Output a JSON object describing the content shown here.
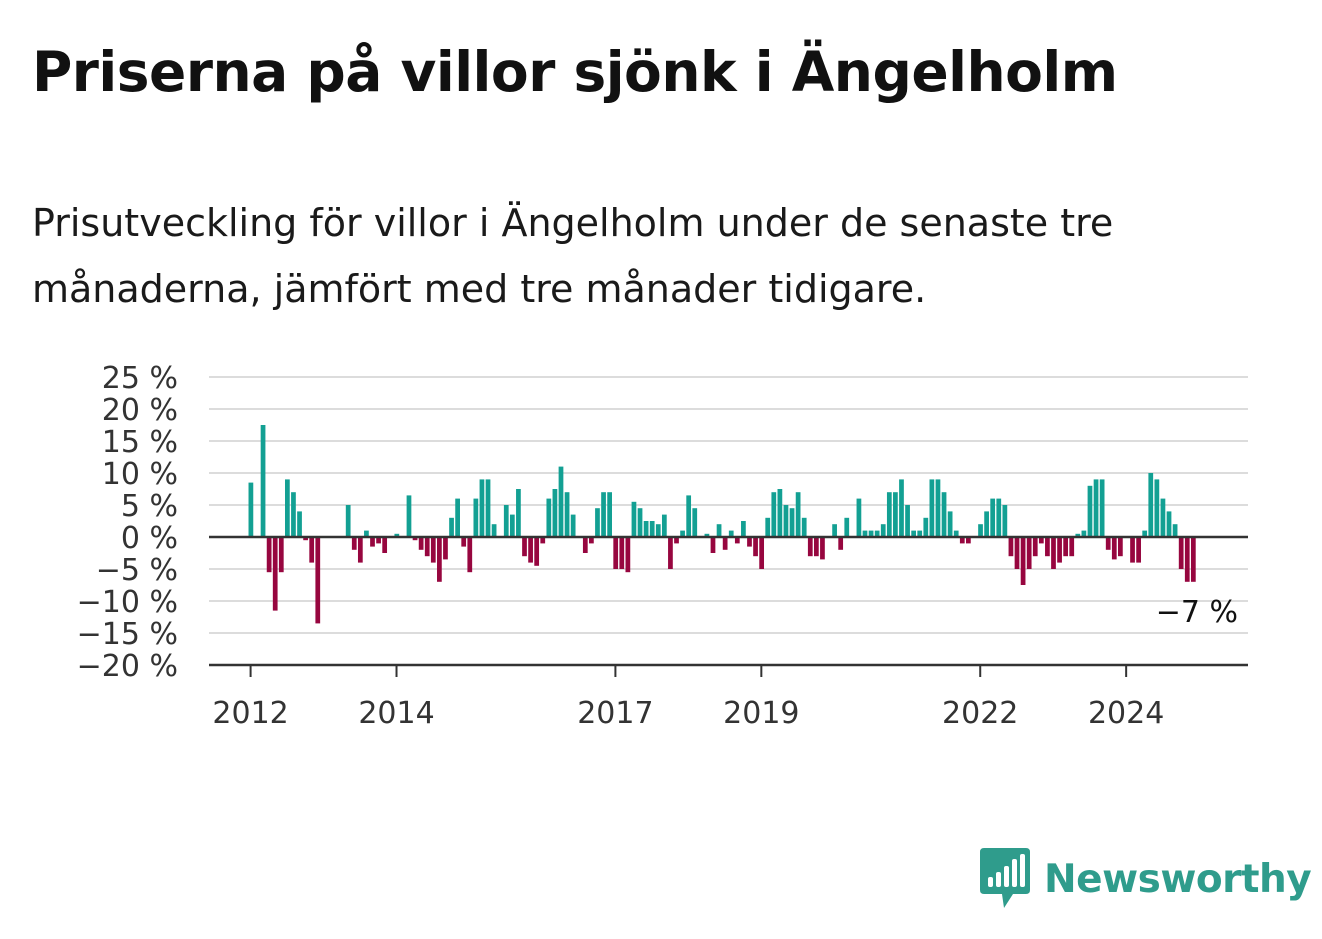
{
  "title": "Priserna på villor sjönk i Ängelholm",
  "subtitle": "Prisutveckling för villor i Ängelholm under de senaste tre månaderna, jämfört med tre månader tidigare.",
  "brand": {
    "name": "Newsworthy",
    "color": "#2f9c8c"
  },
  "colors": {
    "positive": "#13a093",
    "negative": "#97063f",
    "grid": "#dcdcdc",
    "axis": "#333333"
  },
  "chart_data": {
    "type": "bar",
    "title": "Priserna på villor sjönk i Ängelholm",
    "subtitle": "Prisutveckling för villor i Ängelholm under de senaste tre månaderna, jämfört med tre månader tidigare.",
    "xlabel": "",
    "ylabel": "",
    "x_range": [
      2011.43,
      2025.67
    ],
    "ylim": [
      -20,
      25
    ],
    "yticks": [
      25,
      20,
      15,
      10,
      5,
      0,
      -5,
      -10,
      -15,
      -20
    ],
    "ytick_labels": [
      "25 %",
      "20 %",
      "15 %",
      "10 %",
      "5 %",
      "0 %",
      "−5 %",
      "−10 %",
      "−15 %",
      "−20 %"
    ],
    "xticks": [
      2012,
      2014,
      2017,
      2019,
      2022,
      2024
    ],
    "xtick_labels": [
      "2012",
      "2014",
      "2017",
      "2019",
      "2022",
      "2024"
    ],
    "grid": true,
    "annotation": {
      "label": "−7 %",
      "value": -7
    },
    "series": [
      {
        "start": [
          2012,
          1
        ],
        "frequency": "monthly",
        "values": [
          8.5,
          0,
          17.5,
          -5.5,
          -11.5,
          -5.5,
          9,
          7,
          4,
          -0.5,
          -4,
          -13.5,
          0,
          0,
          0,
          0,
          5,
          -2,
          -4,
          1,
          -1.5,
          -1,
          -2.5,
          0,
          0.5,
          0,
          6.5,
          -0.5,
          -2,
          -3,
          -4,
          -7,
          -3.5,
          3,
          6,
          -1.5,
          -5.5,
          6,
          9,
          9,
          2,
          0,
          5,
          3.5,
          7.5,
          -3,
          -4,
          -4.5,
          -1,
          6,
          7.5,
          11,
          7,
          3.5,
          0,
          -2.5,
          -1,
          4.5,
          7,
          7,
          -5,
          -5,
          -5.5,
          5.5,
          4.5,
          2.5,
          2.5,
          2,
          3.5,
          -5,
          -1,
          1,
          6.5,
          4.5,
          0,
          0.5,
          -2.5,
          2,
          -2,
          1,
          -1,
          2.5,
          -1.5,
          -3,
          -5,
          3,
          7,
          7.5,
          5,
          4.5,
          7,
          3,
          -3,
          -3,
          -3.5,
          0,
          2,
          -2,
          3,
          0,
          6,
          1,
          1,
          1,
          2,
          7,
          7,
          9,
          5,
          1,
          1,
          3,
          9,
          9,
          7,
          4,
          1,
          -1,
          -1,
          0,
          2,
          4,
          6,
          6,
          5,
          -3,
          -5,
          -7.5,
          -5,
          -3,
          -1,
          -3,
          -5,
          -4,
          -3,
          -3,
          0.5,
          1,
          8,
          9,
          9,
          -2,
          -3.5,
          -3,
          0,
          -4,
          -4,
          1,
          10,
          9,
          6,
          4,
          2,
          -5,
          -7,
          -7
        ]
      }
    ]
  }
}
